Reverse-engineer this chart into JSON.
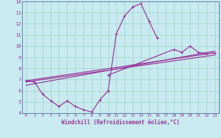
{
  "xlabel": "Windchill (Refroidissement éolien,°C)",
  "xlim": [
    -0.5,
    23.5
  ],
  "ylim": [
    4,
    14
  ],
  "yticks": [
    4,
    5,
    6,
    7,
    8,
    9,
    10,
    11,
    12,
    13,
    14
  ],
  "xticks": [
    0,
    1,
    2,
    3,
    4,
    5,
    6,
    7,
    8,
    9,
    10,
    11,
    12,
    13,
    14,
    15,
    16,
    17,
    18,
    19,
    20,
    21,
    22,
    23
  ],
  "bg_color": "#c8eaf0",
  "line_color": "#993399",
  "grid_color": "#a8d8cc",
  "spine_color": "#6688aa",
  "series_zigzag": {
    "x": [
      0,
      1,
      2,
      3,
      4,
      5,
      6,
      7,
      8,
      9,
      10,
      11,
      12,
      13,
      14,
      15,
      16
    ],
    "y": [
      6.9,
      6.8,
      5.7,
      5.1,
      4.6,
      5.1,
      4.6,
      4.3,
      4.1,
      5.2,
      6.0,
      11.1,
      12.7,
      13.5,
      13.8,
      12.2,
      10.7
    ]
  },
  "series_straight1": {
    "x": [
      0,
      23
    ],
    "y": [
      6.9,
      9.4
    ]
  },
  "series_straight2": {
    "x": [
      0,
      23
    ],
    "y": [
      6.8,
      9.2
    ]
  },
  "series_straight3": {
    "x": [
      0,
      23
    ],
    "y": [
      6.5,
      9.55
    ]
  },
  "series_right": {
    "x": [
      10,
      18,
      19,
      20,
      21,
      22,
      23
    ],
    "y": [
      7.4,
      9.7,
      9.45,
      10.0,
      9.45,
      9.3,
      9.4
    ]
  }
}
